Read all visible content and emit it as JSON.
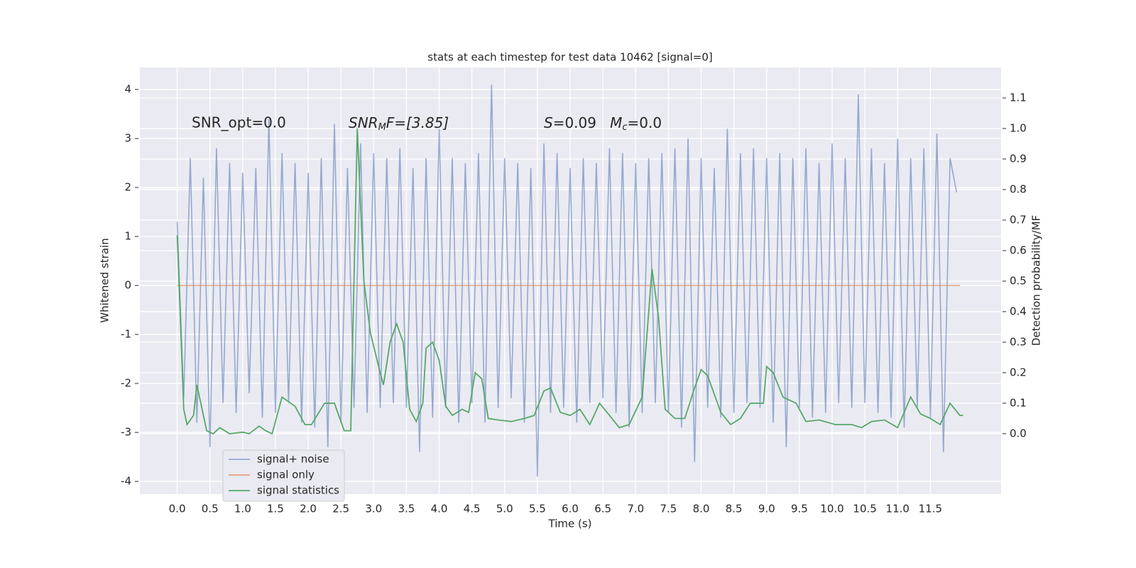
{
  "chart_data": {
    "type": "line",
    "title": "stats at each timestep for test data 10462 [signal=0]",
    "xlabel": "Time (s)",
    "ylabel": "Whitened strain",
    "y2label": "Detection probability/MF",
    "annotations": [
      "SNR_opt=0.0",
      [
        "SNR",
        "M",
        "F=[3.85]"
      ],
      [
        "S",
        "=0.09   ",
        "M",
        "c",
        "=0.0"
      ]
    ],
    "xlim": [
      -0.57,
      12.58
    ],
    "ylim": [
      -4.26,
      4.45
    ],
    "y2lim": [
      -0.198,
      1.2
    ],
    "xticks": [
      {
        "value": 0,
        "label": "0.0"
      },
      0.5,
      {
        "value": 1,
        "label": "1.0"
      },
      1.5,
      {
        "value": 2,
        "label": "2.0"
      },
      2.5,
      {
        "value": 3,
        "label": "3.0"
      },
      3.5,
      {
        "value": 4,
        "label": "4.0"
      },
      4.5,
      {
        "value": 5,
        "label": "5.0"
      },
      5.5,
      {
        "value": 6,
        "label": "6.0"
      },
      6.5,
      {
        "value": 7,
        "label": "7.0"
      },
      7.5,
      {
        "value": 8,
        "label": "8.0"
      },
      8.5,
      {
        "value": 9,
        "label": "9.0"
      },
      9.5,
      {
        "value": 10,
        "label": "10.0"
      },
      10.5,
      {
        "value": 11,
        "label": "11.0"
      },
      11.5
    ],
    "yticks": [
      -4,
      -3,
      -2,
      -1,
      0,
      1,
      2,
      3,
      4
    ],
    "y2ticks": [
      {
        "value": 0,
        "label": "0.0"
      },
      0.1,
      0.2,
      0.3,
      0.4,
      0.5,
      0.6,
      0.7,
      0.8,
      0.9,
      {
        "value": 1,
        "label": "1.0"
      },
      1.1
    ],
    "grid": true,
    "legend": "lower left",
    "series": [
      {
        "name": "signal+ noise",
        "color": "#4c72b0",
        "x": [
          0,
          0.1,
          0.2,
          0.3,
          0.4,
          0.5,
          0.6,
          0.7,
          0.8,
          0.9,
          1,
          1.1,
          1.2,
          1.3,
          1.4,
          1.5,
          1.6,
          1.7,
          1.8,
          1.9,
          2,
          2.1,
          2.2,
          2.3,
          2.4,
          2.5,
          2.6,
          2.7,
          2.8,
          2.9,
          3,
          3.1,
          3.2,
          3.3,
          3.4,
          3.5,
          3.6,
          3.7,
          3.8,
          3.9,
          4,
          4.1,
          4.2,
          4.3,
          4.4,
          4.5,
          4.6,
          4.7,
          4.8,
          4.9,
          5,
          5.1,
          5.2,
          5.3,
          5.4,
          5.5,
          5.6,
          5.7,
          5.8,
          5.9,
          6,
          6.1,
          6.2,
          6.3,
          6.4,
          6.5,
          6.6,
          6.7,
          6.8,
          6.9,
          7,
          7.1,
          7.2,
          7.3,
          7.4,
          7.5,
          7.6,
          7.7,
          7.8,
          7.9,
          8,
          8.1,
          8.2,
          8.3,
          8.4,
          8.5,
          8.6,
          8.7,
          8.8,
          8.9,
          9,
          9.1,
          9.2,
          9.3,
          9.4,
          9.5,
          9.6,
          9.7,
          9.8,
          9.9,
          10,
          10.1,
          10.2,
          10.3,
          10.4,
          10.5,
          10.6,
          10.7,
          10.8,
          10.9,
          11,
          11.1,
          11.2,
          11.3,
          11.4,
          11.5,
          11.6,
          11.7,
          11.8,
          11.9
        ],
        "values": [
          1.3,
          -2.3,
          2.6,
          -2.8,
          2.2,
          -3.3,
          2.8,
          -2.4,
          2.5,
          -2.6,
          2.3,
          -2.2,
          2.4,
          -2.7,
          3.4,
          -2.6,
          2.7,
          -2.4,
          2.5,
          -2.8,
          2.3,
          -2.9,
          2.6,
          -3.3,
          3.3,
          -2.8,
          2.4,
          -2.5,
          2.9,
          -2.6,
          2.7,
          -2.5,
          2.6,
          -2.4,
          2.8,
          -2.5,
          2.4,
          -3.4,
          2.6,
          -2.7,
          3.2,
          -2.5,
          2.6,
          -2.8,
          2.5,
          -2.4,
          2.7,
          -2.8,
          4.1,
          -2.5,
          2.6,
          -2.3,
          2.5,
          -2.8,
          2.4,
          -3.9,
          2.9,
          -2.6,
          2.7,
          -2.5,
          2.4,
          -2.8,
          2.6,
          -2.4,
          2.5,
          -2.3,
          2.8,
          -2.6,
          2.7,
          -2.9,
          2.5,
          -2.6,
          2.6,
          -2.4,
          2.7,
          -2.6,
          2.8,
          -2.9,
          3.0,
          -3.6,
          2.6,
          -2.5,
          2.4,
          -2.7,
          3.2,
          -2.6,
          2.7,
          -2.4,
          2.8,
          -2.5,
          2.6,
          -2.8,
          2.7,
          -3.3,
          2.6,
          -2.5,
          2.8,
          -2.7,
          2.5,
          -2.6,
          2.9,
          -2.4,
          2.6,
          -2.5,
          3.9,
          -2.4,
          2.8,
          -2.6,
          2.5,
          -2.7,
          3.0,
          -2.9,
          2.6,
          -2.5,
          2.8,
          -2.7,
          3.1,
          -3.4,
          2.6,
          1.9
        ]
      },
      {
        "name": "signal only",
        "color": "#dd8452",
        "x": [
          0,
          11.95
        ],
        "values": [
          0,
          0
        ]
      },
      {
        "name": "signal statistics",
        "color": "#55a868",
        "axis": "y2",
        "x": [
          0,
          0.1,
          0.15,
          0.25,
          0.3,
          0.45,
          0.55,
          0.65,
          0.8,
          1,
          1.1,
          1.25,
          1.35,
          1.45,
          1.6,
          1.8,
          1.95,
          2.05,
          2.25,
          2.4,
          2.55,
          2.65,
          2.75,
          2.85,
          2.95,
          3.1,
          3.15,
          3.25,
          3.35,
          3.45,
          3.55,
          3.65,
          3.75,
          3.8,
          3.9,
          4,
          4.1,
          4.2,
          4.35,
          4.45,
          4.55,
          4.65,
          4.75,
          4.9,
          5.1,
          5.3,
          5.45,
          5.6,
          5.7,
          5.85,
          6,
          6.15,
          6.3,
          6.45,
          6.6,
          6.75,
          6.9,
          7.1,
          7.25,
          7.35,
          7.45,
          7.6,
          7.75,
          7.9,
          8,
          8.1,
          8.3,
          8.45,
          8.6,
          8.75,
          8.95,
          9,
          9.1,
          9.25,
          9.45,
          9.6,
          9.8,
          10.05,
          10.3,
          10.45,
          10.6,
          10.8,
          11,
          11.2,
          11.35,
          11.5,
          11.65,
          11.8,
          11.95,
          12
        ],
        "values": [
          0.65,
          0.08,
          0.03,
          0.06,
          0.16,
          0.01,
          0,
          0.02,
          0,
          0.005,
          0,
          0.025,
          0.01,
          0,
          0.12,
          0.09,
          0.03,
          0.03,
          0.1,
          0.1,
          0.01,
          0.01,
          1,
          0.5,
          0.33,
          0.2,
          0.16,
          0.3,
          0.36,
          0.3,
          0.08,
          0.04,
          0.1,
          0.28,
          0.3,
          0.24,
          0.09,
          0.06,
          0.08,
          0.07,
          0.2,
          0.18,
          0.05,
          0.045,
          0.04,
          0.05,
          0.06,
          0.14,
          0.15,
          0.07,
          0.06,
          0.08,
          0.03,
          0.1,
          0.06,
          0.02,
          0.03,
          0.12,
          0.54,
          0.38,
          0.08,
          0.05,
          0.05,
          0.15,
          0.21,
          0.19,
          0.07,
          0.03,
          0.05,
          0.1,
          0.1,
          0.22,
          0.2,
          0.12,
          0.1,
          0.04,
          0.045,
          0.03,
          0.03,
          0.02,
          0.04,
          0.045,
          0.02,
          0.12,
          0.065,
          0.05,
          0.03,
          0.1,
          0.06,
          0.06
        ]
      }
    ]
  }
}
